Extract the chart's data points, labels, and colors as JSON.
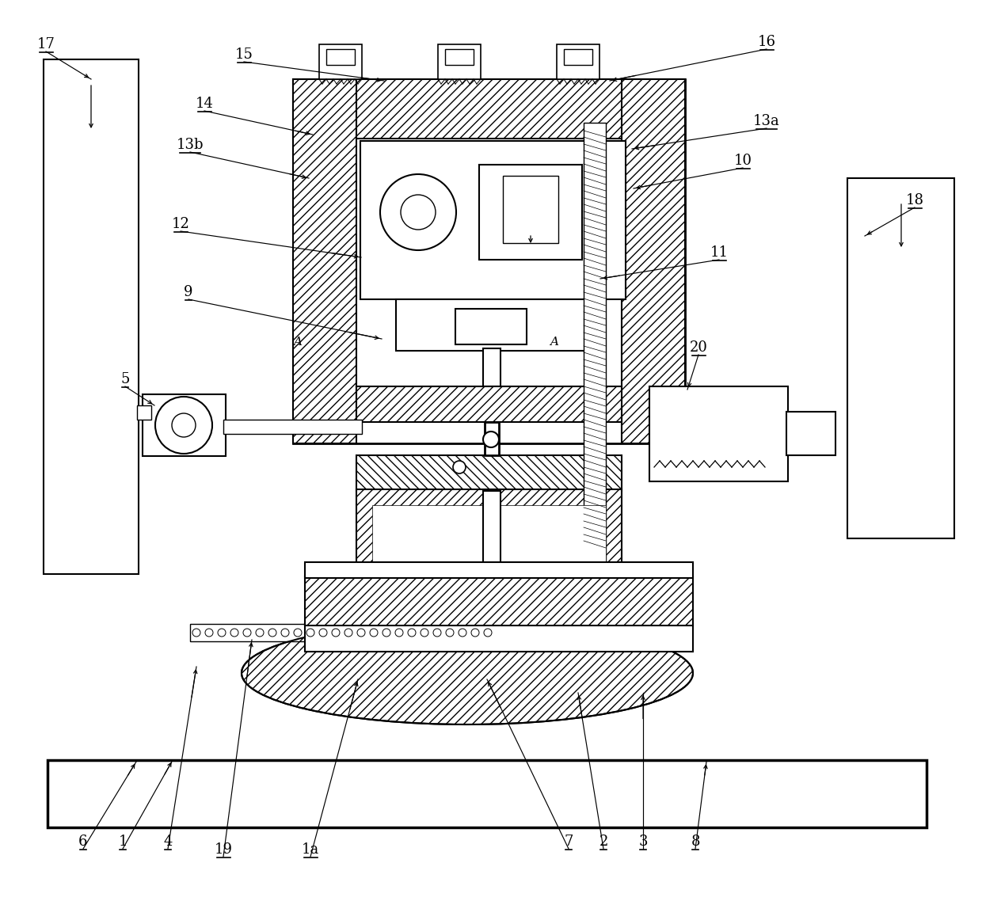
{
  "bg_color": "#ffffff",
  "line_color": "#000000",
  "fig_width": 12.4,
  "fig_height": 11.43,
  "annotations": [
    [
      "15",
      308,
      78,
      485,
      102
    ],
    [
      "16",
      968,
      62,
      770,
      102
    ],
    [
      "14",
      258,
      140,
      395,
      170
    ],
    [
      "13b",
      240,
      192,
      390,
      225
    ],
    [
      "13a",
      968,
      162,
      798,
      188
    ],
    [
      "10",
      938,
      212,
      800,
      238
    ],
    [
      "12",
      228,
      292,
      456,
      325
    ],
    [
      "9",
      238,
      378,
      482,
      428
    ],
    [
      "11",
      908,
      328,
      758,
      352
    ],
    [
      "5",
      158,
      488,
      195,
      512
    ],
    [
      "20",
      882,
      448,
      868,
      492
    ],
    [
      "17",
      58,
      65,
      115,
      100
    ],
    [
      "18",
      1155,
      262,
      1092,
      298
    ],
    [
      "6",
      105,
      1072,
      172,
      962
    ],
    [
      "1",
      155,
      1072,
      218,
      960
    ],
    [
      "4",
      212,
      1072,
      248,
      842
    ],
    [
      "19",
      282,
      1082,
      318,
      808
    ],
    [
      "1a",
      392,
      1082,
      452,
      858
    ],
    [
      "7",
      718,
      1072,
      615,
      858
    ],
    [
      "2",
      762,
      1072,
      730,
      875
    ],
    [
      "3",
      812,
      1072,
      812,
      875
    ],
    [
      "8",
      878,
      1072,
      892,
      962
    ]
  ]
}
